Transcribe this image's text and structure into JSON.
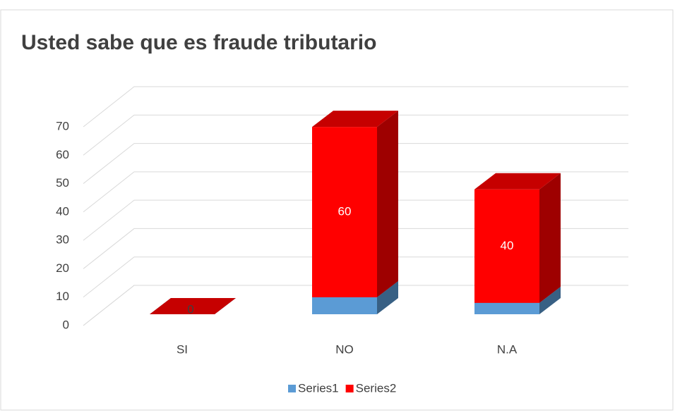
{
  "chart_data": {
    "type": "bar3d_stacked",
    "title": "Usted sabe que es fraude tributario",
    "categories": [
      "SI",
      "NO",
      "N.A"
    ],
    "series": [
      {
        "name": "Series1",
        "color": "#5b9bd5",
        "values": [
          0,
          6,
          4
        ]
      },
      {
        "name": "Series2",
        "color": "#ff0000",
        "values": [
          0,
          60,
          40
        ]
      }
    ],
    "ylim": [
      0,
      70
    ],
    "yticks": [
      0,
      10,
      20,
      30,
      40,
      50,
      60,
      70
    ],
    "grid": true,
    "legend": "bottom"
  }
}
